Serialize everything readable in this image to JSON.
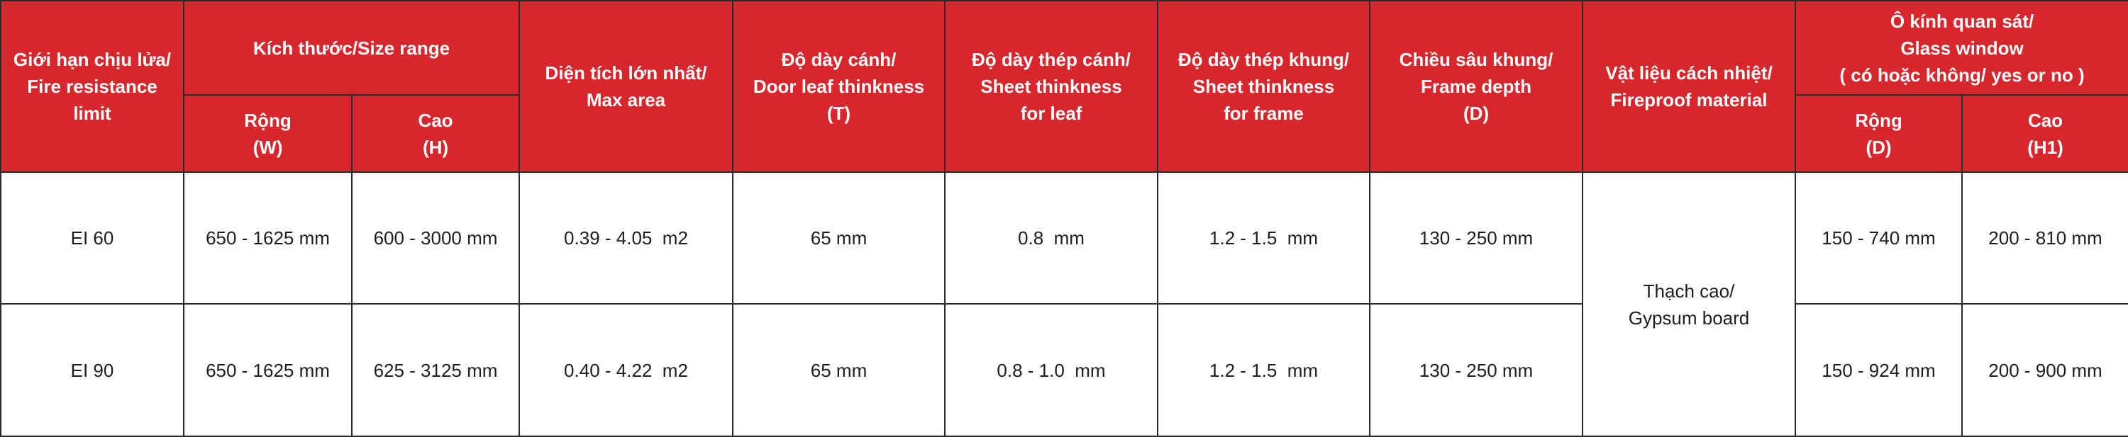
{
  "headers": {
    "fire_limit": "Giới hạn chịu lửa/\nFire resistance\nlimit",
    "size_range": "Kích thước/Size range",
    "width": "Rộng\n(W)",
    "height": "Cao\n(H)",
    "max_area": "Diện tích lớn nhất/\nMax area",
    "leaf_thickness": "Độ dày cánh/\nDoor leaf thinkness\n(T)",
    "sheet_leaf": "Độ dày thép cánh/\nSheet thinkness\nfor leaf",
    "sheet_frame": "Độ dày thép khung/\nSheet thinkness\nfor frame",
    "frame_depth": "Chiều sâu khung/\nFrame depth\n(D)",
    "fireproof_material": "Vật liệu cách nhiệt/\nFireproof material",
    "glass_window": "Ô kính quan sát/\nGlass window\n( có hoặc không/ yes or no )",
    "glass_width": "Rộng\n(D)",
    "glass_height": "Cao\n(H1)"
  },
  "shared": {
    "material": "Thạch cao/\nGypsum board"
  },
  "rows": [
    {
      "limit": "EI 60",
      "width": "650 - 1625 mm",
      "height": "600 - 3000 mm",
      "area": "0.39 - 4.05  m2",
      "leaf": "65 mm",
      "sheet_leaf": "0.8  mm",
      "sheet_frame": "1.2 - 1.5  mm",
      "depth": "130 - 250 mm",
      "glass_w": "150 - 740 mm",
      "glass_h": "200 - 810 mm"
    },
    {
      "limit": "EI 90",
      "width": "650 - 1625 mm",
      "height": "625 - 3125 mm",
      "area": "0.40 - 4.22  m2",
      "leaf": "65 mm",
      "sheet_leaf": "0.8 - 1.0  mm",
      "sheet_frame": "1.2 - 1.5  mm",
      "depth": "130 - 250 mm",
      "glass_w": "150 - 924 mm",
      "glass_h": "200 - 900 mm"
    }
  ]
}
